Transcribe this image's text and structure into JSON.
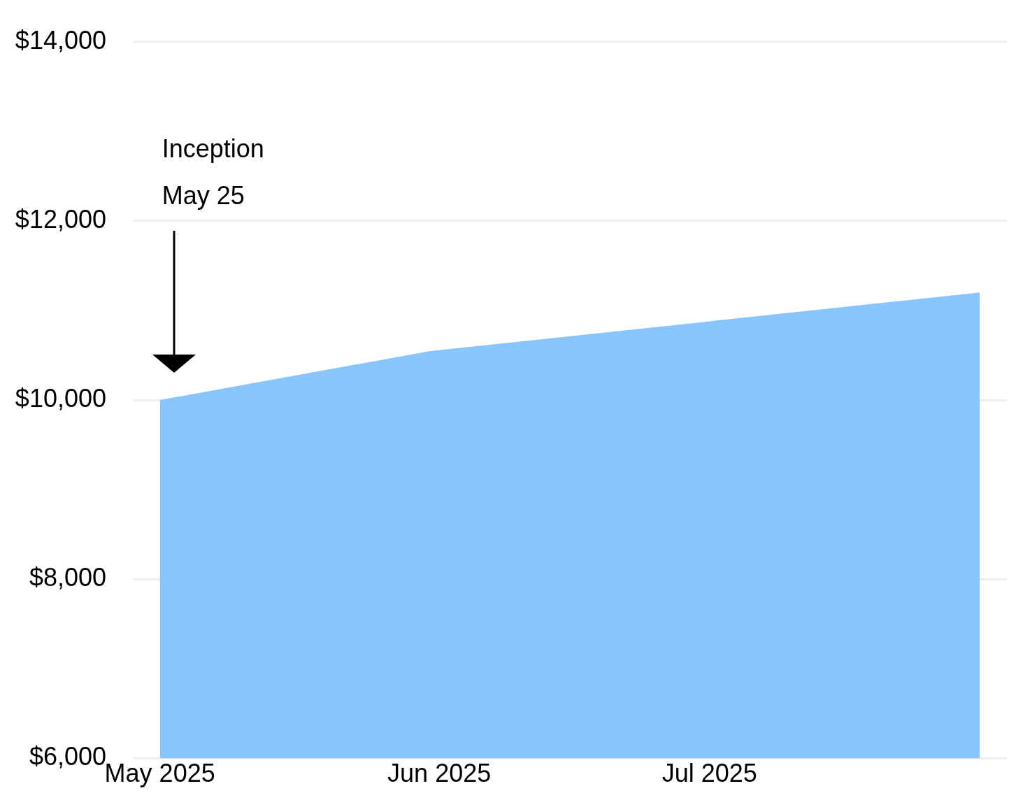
{
  "chart_data": {
    "type": "area",
    "x": [
      "2025-05-25",
      "2025-06-24",
      "2025-08-24"
    ],
    "series": [
      {
        "color": "#88c5fc",
        "values": [
          10000,
          10546,
          11200
        ]
      }
    ],
    "xlim": [
      "2025-05-22",
      "2025-08-27"
    ],
    "xticks": [
      {
        "value": "2025-05-25",
        "label": "May 2025"
      },
      {
        "value": "2025-06-25",
        "label": "Jun 2025"
      },
      {
        "value": "2025-07-25",
        "label": "Jul 2025"
      }
    ],
    "ylim": [
      6000,
      14000
    ],
    "yticks": [
      {
        "value": 6000,
        "label": "$6,000"
      },
      {
        "value": 8000,
        "label": "$8,000"
      },
      {
        "value": 10000,
        "label": "$10,000"
      },
      {
        "value": 12000,
        "label": "$12,000"
      },
      {
        "value": 14000,
        "label": "$14,000"
      }
    ],
    "grid": "y",
    "legend": false,
    "marker": "none",
    "annotations": [
      "Inception\nMay 25"
    ]
  }
}
